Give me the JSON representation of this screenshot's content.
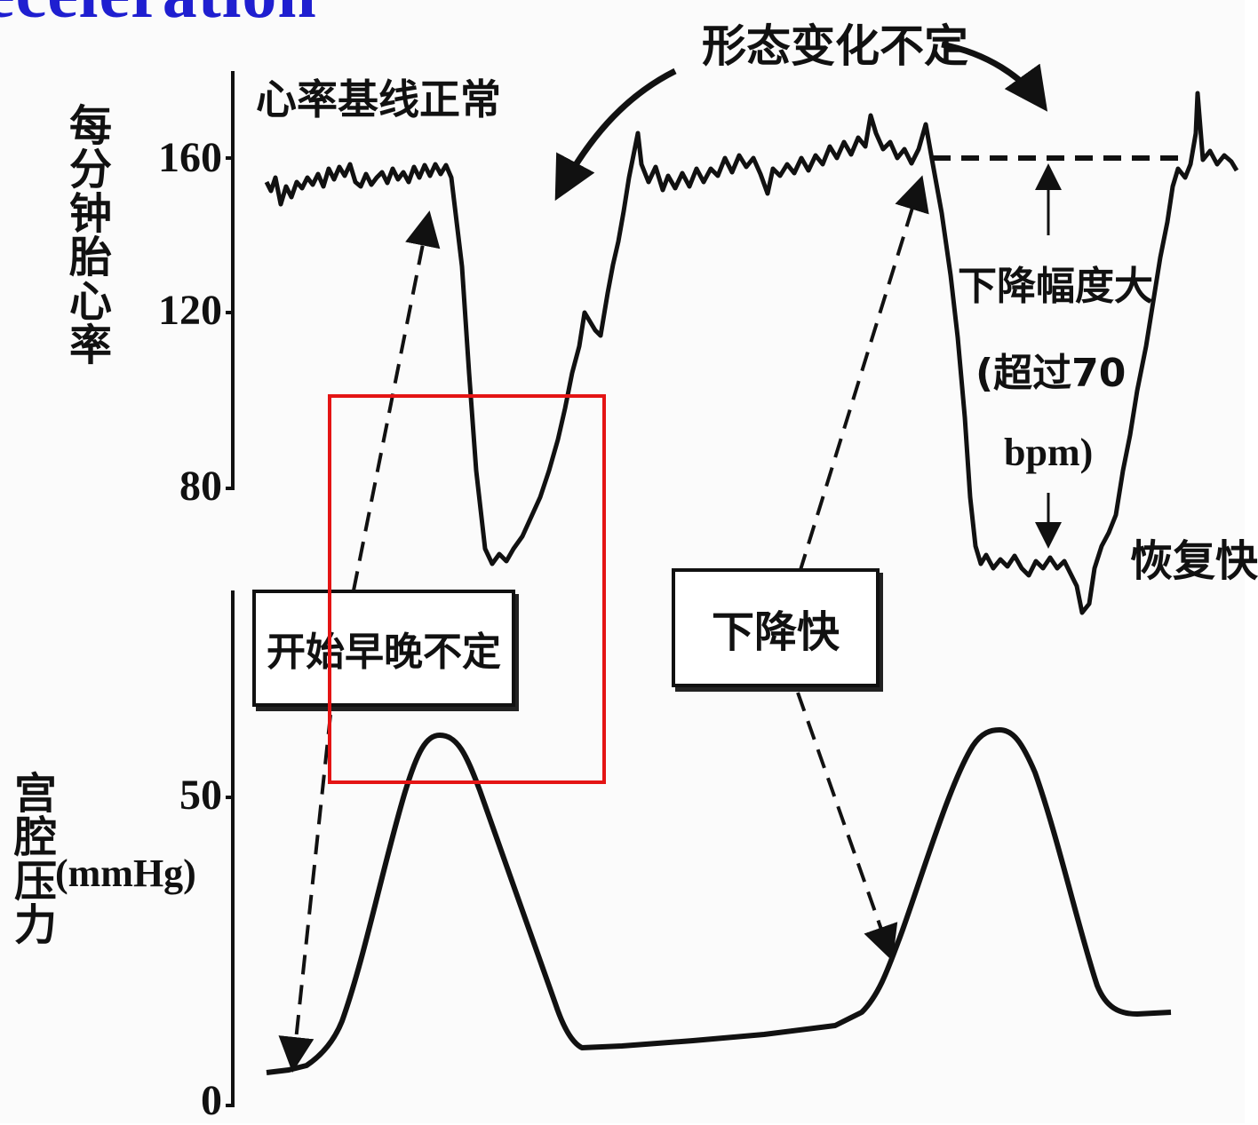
{
  "title": "eceleration",
  "labels": {
    "baseline_normal": "心率基线正常",
    "shape_variable": "形态变化不定",
    "drop_large": "下降幅度大",
    "drop_large_detail": "(超过70",
    "bpm": "bpm)",
    "recover_fast": "恢复快",
    "drop_fast": "下降快",
    "onset_variable": "开始早晚不定"
  },
  "axes": {
    "fhr_label": "每分钟胎心率",
    "fhr_ticks": [
      "160",
      "120",
      "80"
    ],
    "pressure_label": "宫腔压力",
    "pressure_unit": "(mmHg)",
    "pressure_ticks": [
      "50",
      "0"
    ]
  },
  "colors": {
    "title": "#1f1fd0",
    "ink": "#111111",
    "highlight": "#e41414"
  }
}
